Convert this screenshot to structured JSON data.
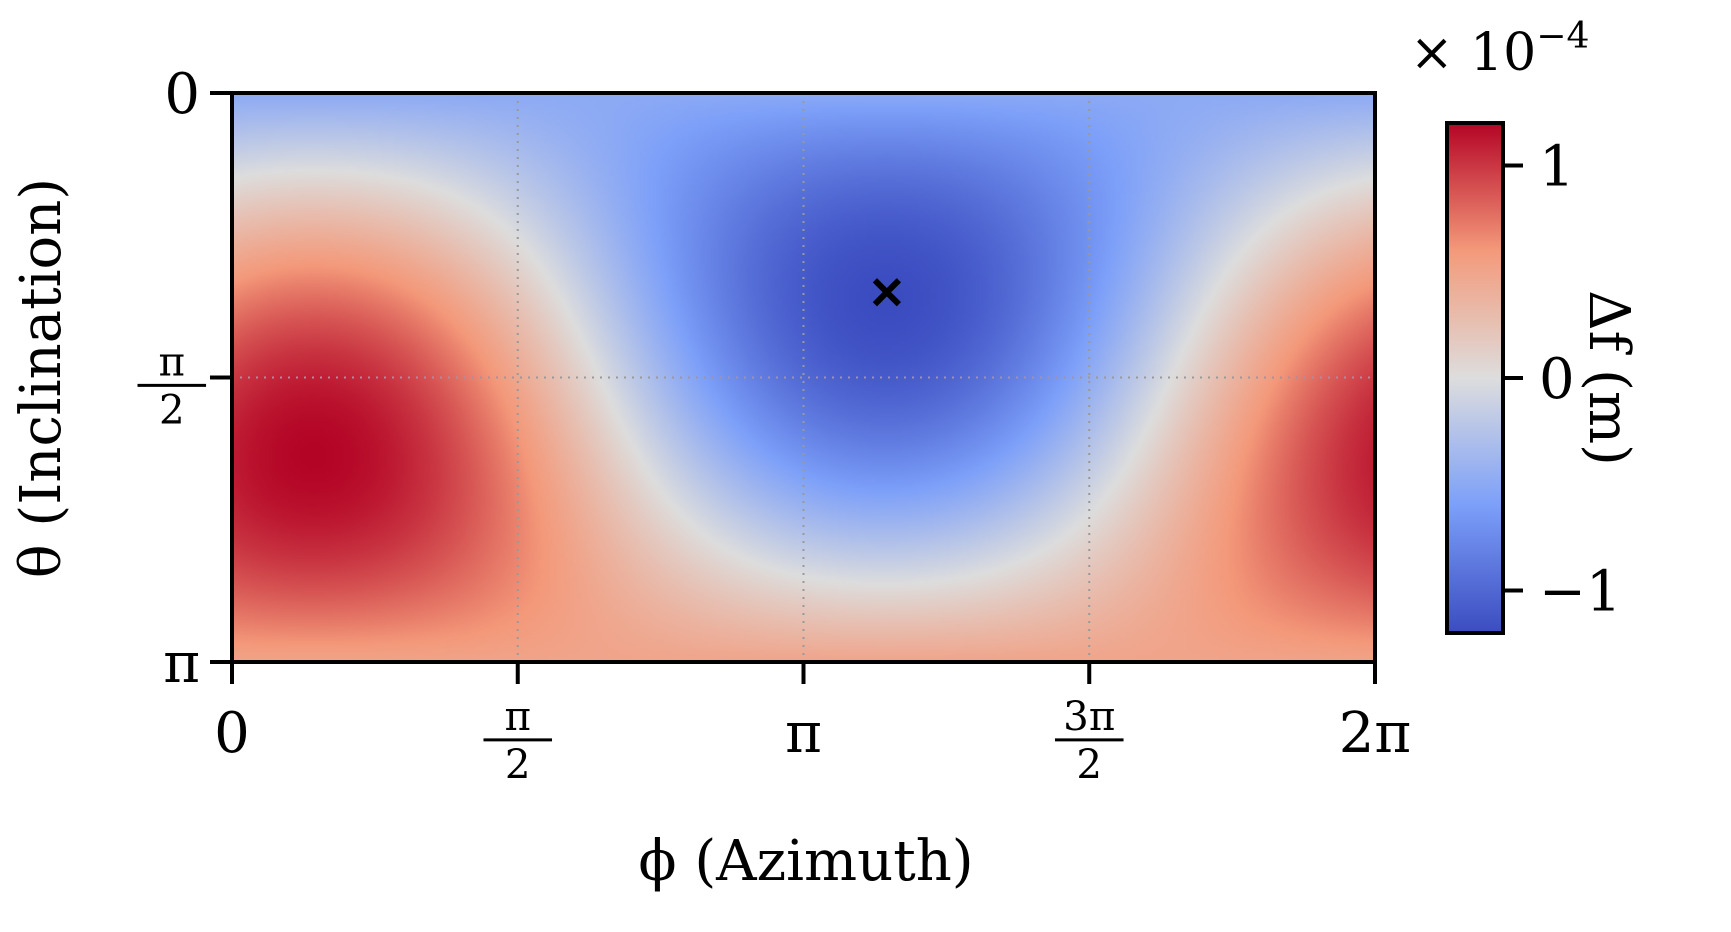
{
  "chart_data": {
    "type": "heatmap",
    "title": "",
    "xlabel": "ϕ (Azimuth)",
    "ylabel": "θ (Inclination)",
    "xlim": [
      0,
      6.2832
    ],
    "ylim": [
      3.1416,
      0
    ],
    "x_ticks": [
      {
        "value": 0,
        "label": "0"
      },
      {
        "value": 1.5708,
        "num": "π",
        "den": "2"
      },
      {
        "value": 3.1416,
        "label": "π"
      },
      {
        "value": 4.7124,
        "num": "3π",
        "den": "2"
      },
      {
        "value": 6.2832,
        "label": "2π"
      }
    ],
    "y_ticks": [
      {
        "value": 0,
        "label": "0"
      },
      {
        "value": 1.5708,
        "num": "π",
        "den": "2"
      },
      {
        "value": 3.1416,
        "label": "π"
      }
    ],
    "grid": true,
    "grid_style": "dotted",
    "colormap": "coolwarm",
    "colorbar": {
      "label": "Δf (m)",
      "multiplier": "× 10",
      "exponent": "−4",
      "range": [
        -1.2,
        1.2
      ],
      "ticks": [
        {
          "value": 1,
          "label": "1"
        },
        {
          "value": 0,
          "label": "0"
        },
        {
          "value": -1,
          "label": "−1"
        }
      ]
    },
    "field": {
      "description_units": "Δf in units of 1e-4 m",
      "hot_spot": {
        "phi": 0.45,
        "theta": 2.0,
        "value": 1.2
      },
      "cold_spot": {
        "phi": 3.6,
        "theta": 1.1,
        "value": -1.2
      },
      "min_value": -1.2,
      "max_value": 1.2
    },
    "marker": {
      "phi": 3.6,
      "theta": 1.1,
      "symbol": "×"
    }
  },
  "colors": {
    "cmap_low": "#3b4cc0",
    "cmap_mid": "#dddddd",
    "cmap_high": "#b40426",
    "axis": "#000000",
    "grid": "#999999",
    "marker": "#000000"
  }
}
